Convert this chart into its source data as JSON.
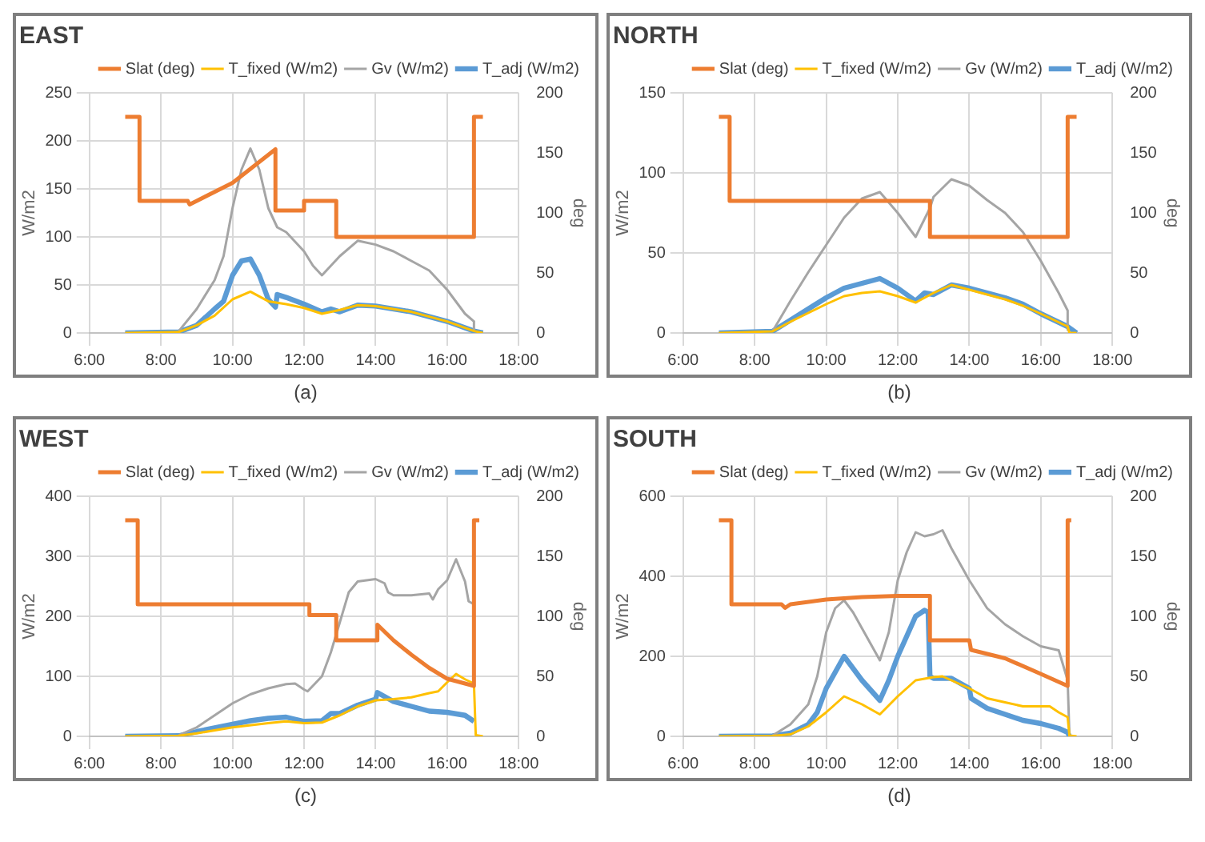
{
  "chart_data": [
    {
      "type": "line",
      "title": "EAST",
      "xlabel": null,
      "ylabel": "W/m2",
      "y2label": "deg",
      "annotations": [
        "(a)"
      ],
      "legend": "top",
      "grid": true,
      "xlim": [
        6,
        18
      ],
      "xticks": [
        {
          "value": 6,
          "label": "6:00"
        },
        {
          "value": 8,
          "label": "8:00"
        },
        {
          "value": 10,
          "label": "10:00"
        },
        {
          "value": 12,
          "label": "12:00"
        },
        {
          "value": 14,
          "label": "14:00"
        },
        {
          "value": 16,
          "label": "16:00"
        },
        {
          "value": 18,
          "label": "18:00"
        }
      ],
      "ylim": [
        0,
        250
      ],
      "yticks": [
        0,
        50,
        100,
        150,
        200,
        250
      ],
      "y2lim": [
        0,
        200
      ],
      "y2ticks": [
        0,
        50,
        100,
        150,
        200
      ],
      "series": [
        {
          "name": "T_adj (W/m2)",
          "color": "#5b9bd5",
          "x": [
            7,
            8.5,
            9,
            9.5,
            9.75,
            10,
            10.25,
            10.5,
            10.75,
            11,
            11.2,
            11.25,
            11.5,
            12,
            12.5,
            12.75,
            13,
            13.5,
            14,
            15,
            16,
            16.75,
            17
          ],
          "values": [
            0,
            1,
            8,
            25,
            33,
            60,
            75,
            77,
            60,
            35,
            27,
            40,
            37,
            30,
            22,
            25,
            22,
            29,
            28,
            22,
            12,
            2,
            0
          ]
        },
        {
          "name": "Gv (W/m2)",
          "color": "#a5a5a5",
          "x": [
            8.5,
            9,
            9.5,
            9.75,
            10,
            10.25,
            10.5,
            10.75,
            11,
            11.25,
            11.5,
            12,
            12.25,
            12.5,
            12.75,
            13,
            13.5,
            14,
            14.5,
            15,
            15.5,
            16,
            16.5,
            16.75,
            16.75
          ],
          "values": [
            2,
            25,
            55,
            80,
            130,
            170,
            192,
            170,
            130,
            110,
            105,
            85,
            70,
            60,
            70,
            80,
            96,
            92,
            85,
            75,
            65,
            45,
            20,
            12,
            2
          ]
        },
        {
          "name": "T_fixed (W/m2)",
          "color": "#ffc000",
          "x": [
            7,
            8.5,
            9,
            9.5,
            10,
            10.5,
            11,
            11.5,
            12,
            12.5,
            13,
            13.5,
            14,
            15,
            16,
            16.75,
            17
          ],
          "values": [
            0,
            1,
            8,
            18,
            35,
            43,
            33,
            30,
            26,
            20,
            24,
            29,
            28,
            22,
            12,
            2,
            0
          ]
        },
        {
          "name": "Slat (deg)",
          "color": "#ed7d31",
          "axis": "y2",
          "x": [
            7,
            7.4,
            7.4,
            8.75,
            8.8,
            9,
            10,
            11.2,
            11.2,
            12,
            12,
            12.9,
            12.9,
            16.75,
            16.75,
            17
          ],
          "values": [
            180,
            180,
            110,
            110,
            107,
            110,
            125,
            153,
            102,
            102,
            110,
            110,
            80,
            80,
            180,
            180
          ]
        }
      ]
    },
    {
      "type": "line",
      "title": "NORTH",
      "ylabel": "W/m2",
      "y2label": "deg",
      "annotations": [
        "(b)"
      ],
      "legend": "top",
      "grid": true,
      "xlim": [
        6,
        18
      ],
      "xticks": [
        {
          "value": 6,
          "label": "6:00"
        },
        {
          "value": 8,
          "label": "8:00"
        },
        {
          "value": 10,
          "label": "10:00"
        },
        {
          "value": 12,
          "label": "12:00"
        },
        {
          "value": 14,
          "label": "14:00"
        },
        {
          "value": 16,
          "label": "16:00"
        },
        {
          "value": 18,
          "label": "18:00"
        }
      ],
      "ylim": [
        0,
        150
      ],
      "yticks": [
        0,
        50,
        100,
        150
      ],
      "y2lim": [
        0,
        200
      ],
      "y2ticks": [
        0,
        50,
        100,
        150,
        200
      ],
      "series": [
        {
          "name": "T_adj (W/m2)",
          "color": "#5b9bd5",
          "x": [
            7,
            8.5,
            9,
            10,
            10.5,
            11,
            11.5,
            12,
            12.5,
            12.75,
            13,
            13.5,
            14,
            15,
            15.5,
            16,
            16.75,
            17
          ],
          "values": [
            0,
            1,
            8,
            22,
            28,
            31,
            34,
            28,
            20,
            25,
            24,
            30,
            28,
            22,
            18,
            12,
            4,
            0
          ]
        },
        {
          "name": "Gv (W/m2)",
          "color": "#a5a5a5",
          "x": [
            8.5,
            9,
            9.5,
            10,
            10.5,
            11,
            11.5,
            12,
            12.5,
            12.9,
            13,
            13.5,
            14,
            14.5,
            15,
            15.5,
            16,
            16.5,
            16.75,
            16.75
          ],
          "values": [
            1,
            20,
            38,
            55,
            72,
            84,
            88,
            75,
            60,
            78,
            85,
            96,
            92,
            83,
            75,
            63,
            45,
            25,
            14,
            2
          ]
        },
        {
          "name": "T_fixed (W/m2)",
          "color": "#ffc000",
          "x": [
            7,
            8.5,
            9,
            10,
            10.5,
            11,
            11.5,
            12,
            12.5,
            13,
            13.5,
            14,
            15,
            15.5,
            16,
            16.75,
            16.8,
            17
          ],
          "values": [
            0,
            1,
            7,
            18,
            23,
            25,
            26,
            23,
            19,
            25,
            30,
            27,
            21,
            17,
            12,
            4,
            0,
            0
          ]
        },
        {
          "name": "Slat (deg)",
          "color": "#ed7d31",
          "axis": "y2",
          "x": [
            7,
            7.3,
            7.3,
            12.9,
            12.9,
            16.75,
            16.75,
            17
          ],
          "values": [
            180,
            180,
            110,
            110,
            80,
            80,
            180,
            180
          ]
        }
      ]
    },
    {
      "type": "line",
      "title": "WEST",
      "ylabel": "W/m2",
      "y2label": "deg",
      "annotations": [
        "(c)"
      ],
      "legend": "top",
      "grid": true,
      "xlim": [
        6,
        18
      ],
      "xticks": [
        {
          "value": 6,
          "label": "6:00"
        },
        {
          "value": 8,
          "label": "8:00"
        },
        {
          "value": 10,
          "label": "10:00"
        },
        {
          "value": 12,
          "label": "12:00"
        },
        {
          "value": 14,
          "label": "14:00"
        },
        {
          "value": 16,
          "label": "16:00"
        },
        {
          "value": 18,
          "label": "18:00"
        }
      ],
      "ylim": [
        0,
        400
      ],
      "yticks": [
        0,
        100,
        200,
        300,
        400
      ],
      "y2lim": [
        0,
        200
      ],
      "y2ticks": [
        0,
        50,
        100,
        150,
        200
      ],
      "series": [
        {
          "name": "T_adj (W/m2)",
          "color": "#5b9bd5",
          "x": [
            7,
            8.5,
            9,
            10,
            10.5,
            11,
            11.5,
            12,
            12.5,
            12.75,
            13,
            13.5,
            14,
            14.05,
            14.5,
            15,
            15.5,
            16,
            16.5,
            16.75
          ],
          "values": [
            0,
            1,
            8,
            20,
            26,
            30,
            32,
            25,
            26,
            38,
            38,
            52,
            62,
            73,
            58,
            50,
            42,
            40,
            35,
            25
          ]
        },
        {
          "name": "Gv (W/m2)",
          "color": "#a5a5a5",
          "x": [
            8.5,
            9,
            9.5,
            10,
            10.5,
            11,
            11.5,
            11.75,
            12,
            12.1,
            12.5,
            12.75,
            13,
            13.25,
            13.5,
            14,
            14.25,
            14.35,
            14.5,
            15,
            15.5,
            15.6,
            15.75,
            16,
            16.25,
            16.5,
            16.6,
            16.75
          ],
          "values": [
            2,
            15,
            35,
            55,
            70,
            80,
            87,
            88,
            78,
            75,
            100,
            140,
            190,
            240,
            258,
            262,
            255,
            240,
            235,
            235,
            238,
            228,
            245,
            260,
            295,
            258,
            225,
            220
          ]
        },
        {
          "name": "T_fixed (W/m2)",
          "color": "#ffc000",
          "x": [
            7,
            8.5,
            9,
            10,
            11,
            11.5,
            12,
            12.5,
            13,
            13.5,
            14,
            14.5,
            15,
            15.5,
            15.75,
            16,
            16.25,
            16.5,
            16.75,
            16.8,
            17
          ],
          "values": [
            0,
            1,
            5,
            15,
            22,
            25,
            22,
            23,
            35,
            50,
            60,
            62,
            65,
            72,
            75,
            90,
            104,
            95,
            88,
            2,
            0
          ]
        },
        {
          "name": "Slat (deg)",
          "color": "#ed7d31",
          "axis": "y2",
          "x": [
            7,
            7.35,
            7.35,
            12.15,
            12.15,
            12.9,
            12.9,
            14.05,
            14.05,
            14.5,
            15,
            15.5,
            16,
            16.75,
            16.75,
            16.9
          ],
          "values": [
            180,
            180,
            110,
            110,
            101,
            101,
            80,
            80,
            93,
            80,
            68,
            57,
            48,
            42,
            180,
            180
          ]
        }
      ]
    },
    {
      "type": "line",
      "title": "SOUTH",
      "ylabel": "W/m2",
      "y2label": "deg",
      "annotations": [
        "(d)"
      ],
      "legend": "top",
      "grid": true,
      "xlim": [
        6,
        18
      ],
      "xticks": [
        {
          "value": 6,
          "label": "6:00"
        },
        {
          "value": 8,
          "label": "8:00"
        },
        {
          "value": 10,
          "label": "10:00"
        },
        {
          "value": 12,
          "label": "12:00"
        },
        {
          "value": 14,
          "label": "14:00"
        },
        {
          "value": 16,
          "label": "16:00"
        },
        {
          "value": 18,
          "label": "18:00"
        }
      ],
      "ylim": [
        0,
        600
      ],
      "yticks": [
        0,
        200,
        400,
        600
      ],
      "y2lim": [
        0,
        200
      ],
      "y2ticks": [
        0,
        50,
        100,
        150,
        200
      ],
      "series": [
        {
          "name": "T_adj (W/m2)",
          "color": "#5b9bd5",
          "x": [
            7,
            8.5,
            9,
            9.5,
            9.75,
            10,
            10.25,
            10.5,
            10.75,
            11,
            11.25,
            11.5,
            11.75,
            12,
            12.25,
            12.5,
            12.75,
            12.85,
            12.9,
            13,
            13.5,
            14,
            14.05,
            14.5,
            15,
            15.5,
            16,
            16.5,
            16.75,
            16.8
          ],
          "values": [
            0,
            1,
            8,
            30,
            60,
            120,
            160,
            200,
            170,
            140,
            115,
            90,
            140,
            200,
            250,
            300,
            315,
            310,
            150,
            145,
            145,
            120,
            95,
            70,
            55,
            40,
            32,
            20,
            10,
            0
          ]
        },
        {
          "name": "Gv (W/m2)",
          "color": "#a5a5a5",
          "x": [
            8.5,
            9,
            9.5,
            9.75,
            10,
            10.25,
            10.5,
            10.75,
            11,
            11.25,
            11.5,
            11.75,
            12,
            12.25,
            12.5,
            12.75,
            13,
            13.25,
            13.5,
            14,
            14.5,
            15,
            15.5,
            16,
            16.5,
            16.75,
            16.8
          ],
          "values": [
            2,
            30,
            80,
            150,
            260,
            320,
            340,
            310,
            270,
            230,
            190,
            260,
            390,
            460,
            510,
            500,
            505,
            515,
            470,
            390,
            320,
            280,
            250,
            225,
            215,
            140,
            0
          ]
        },
        {
          "name": "T_fixed (W/m2)",
          "color": "#ffc000",
          "x": [
            7,
            8.5,
            9,
            9.5,
            10,
            10.5,
            11,
            11.5,
            12,
            12.5,
            13,
            13.25,
            13.5,
            14,
            14.5,
            15,
            15.5,
            16,
            16.25,
            16.5,
            16.75,
            16.8,
            17
          ],
          "values": [
            0,
            1,
            5,
            25,
            60,
            100,
            80,
            55,
            100,
            140,
            148,
            150,
            140,
            120,
            95,
            85,
            75,
            75,
            75,
            60,
            48,
            2,
            0
          ]
        },
        {
          "name": "Slat (deg)",
          "color": "#ed7d31",
          "axis": "y2",
          "x": [
            7,
            7.35,
            7.35,
            8.75,
            8.85,
            9,
            10,
            11,
            12,
            12.9,
            12.9,
            14,
            14.05,
            15,
            16,
            16.75,
            16.75,
            16.85
          ],
          "values": [
            180,
            180,
            110,
            110,
            107,
            110,
            114,
            116,
            117,
            117,
            80,
            80,
            72,
            65,
            52,
            42,
            180,
            180
          ]
        }
      ]
    }
  ]
}
